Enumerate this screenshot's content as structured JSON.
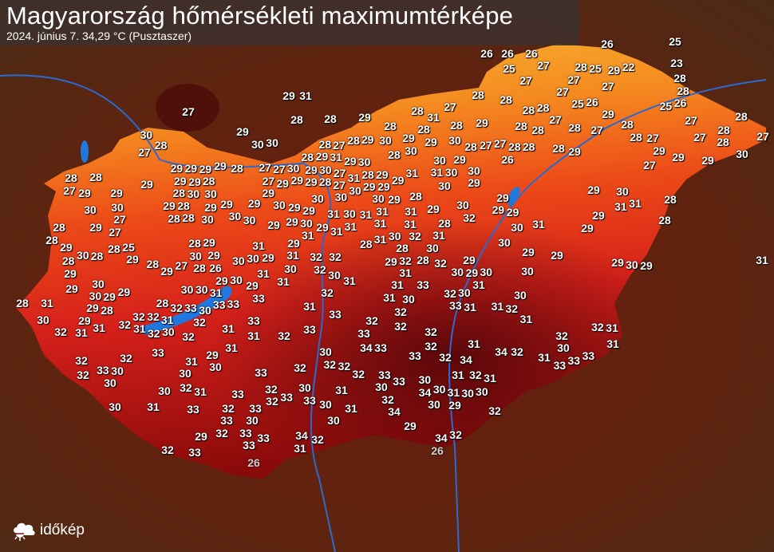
{
  "header": {
    "title": "Magyarország hőmérsékleti maximumtérképe",
    "subtitle": "2024. június 7.   34,29 °C (Pusztaszer)"
  },
  "logo": {
    "text": "időkép",
    "icon": "cloud-sun-icon"
  },
  "colors": {
    "cool": "#f5b020",
    "mid": "#e83a12",
    "hot": "#7a0808",
    "water": "#1e78e0",
    "terrain": "#5a1a0e"
  },
  "unit": "°C",
  "temperatures": [
    26,
    26,
    26,
    26,
    25,
    25,
    27,
    28,
    25,
    29,
    22,
    23,
    27,
    27,
    27,
    28,
    28,
    28,
    28,
    27,
    25,
    26,
    26,
    25,
    28,
    27,
    28,
    28,
    29,
    27,
    29,
    31,
    28,
    28,
    29,
    28,
    31,
    28,
    28,
    29,
    28,
    28,
    27,
    28,
    27,
    28,
    27,
    28,
    27,
    28,
    28,
    27,
    28,
    27,
    29,
    30,
    29,
    30,
    30,
    28,
    29,
    30,
    29,
    29,
    30,
    28,
    27,
    27,
    28,
    28,
    26,
    28,
    29,
    28,
    27,
    27,
    28,
    28,
    29,
    31,
    29,
    30,
    28,
    30,
    29,
    27,
    29,
    30,
    28,
    28,
    29,
    29,
    29,
    29,
    28,
    27,
    27,
    30,
    29,
    30,
    27,
    28,
    29,
    29,
    31,
    31,
    30,
    29,
    30,
    30,
    29,
    29,
    29,
    29,
    28,
    27,
    29,
    29,
    29,
    28,
    27,
    31,
    30,
    29,
    30,
    27,
    29,
    29,
    28,
    30,
    30,
    29,
    30,
    29,
    30,
    29,
    28,
    29,
    29,
    30,
    28,
    30,
    30,
    29,
    28,
    29,
    29,
    30,
    29,
    30,
    29,
    29,
    30,
    31,
    30,
    31,
    31,
    31,
    29,
    30,
    32,
    29,
    29,
    31,
    31,
    29,
    28,
    29,
    27,
    27,
    28,
    28,
    30,
    30,
    29,
    29,
    30,
    29,
    31,
    31,
    31,
    28,
    30,
    31,
    29,
    28,
    28,
    29,
    28,
    30,
    28,
    28,
    25,
    29,
    28,
    29,
    27,
    28,
    29,
    28,
    26,
    30,
    29,
    30,
    31,
    30,
    29,
    29,
    31,
    31,
    28,
    31,
    30,
    28,
    32,
    30,
    31,
    30,
    29,
    29,
    29,
    29,
    30,
    29,
    29,
    30,
    29,
    28,
    28,
    31,
    30,
    30,
    31,
    30,
    29,
    29,
    31,
    31,
    30,
    31,
    32,
    32,
    32,
    30,
    31,
    29,
    32,
    28,
    31,
    32,
    29,
    30,
    29,
    30,
    31,
    30,
    29,
    30,
    29,
    31,
    30,
    32,
    31,
    29,
    31,
    32,
    32,
    32,
    31,
    31,
    32,
    30,
    28,
    32,
    33,
    30,
    32,
    33,
    33,
    33,
    31,
    32,
    31,
    33,
    32,
    30,
    33,
    31,
    31,
    32,
    30,
    31,
    30,
    32,
    33,
    33,
    31,
    32,
    31,
    32,
    33,
    32,
    33,
    32,
    32,
    31,
    32,
    31,
    32,
    31,
    32,
    32,
    33,
    31,
    29,
    31,
    30,
    30,
    32,
    33,
    30,
    30,
    30,
    32,
    32,
    34,
    33,
    33,
    32,
    32,
    34,
    31,
    34,
    32,
    31,
    30,
    33,
    33,
    33,
    33,
    32,
    32,
    33,
    33,
    30,
    31,
    32,
    31,
    30,
    32,
    31,
    33,
    32,
    32,
    33,
    30,
    33,
    31,
    30,
    32,
    34,
    30,
    31,
    30,
    30,
    30,
    31,
    33,
    32,
    33,
    30,
    31,
    34,
    30,
    29,
    32,
    33,
    30,
    30,
    29,
    29,
    32,
    33,
    33,
    33,
    34,
    32,
    31,
    34,
    32,
    32,
    33,
    26,
    26
  ],
  "faded_indices_note": ""
}
